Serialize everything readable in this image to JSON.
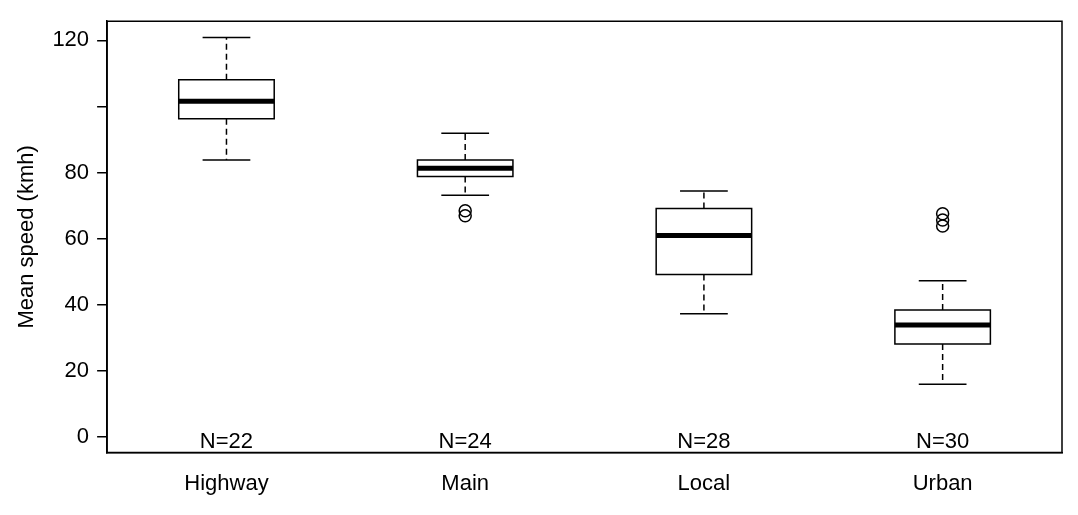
{
  "chart_data": {
    "type": "box",
    "ylabel": "Mean speed (kmh)",
    "categories": [
      "Highway",
      "Main",
      "Local",
      "Urban"
    ],
    "boxes": [
      {
        "low": 83.8,
        "q1": 96.3,
        "median": 101.6,
        "q3": 108.1,
        "high": 120.9
      },
      {
        "low": 73.1,
        "q1": 78.8,
        "median": 81.3,
        "q3": 83.8,
        "high": 91.9,
        "outliers": [
          68.4,
          66.9
        ]
      },
      {
        "low": 37.2,
        "q1": 49.1,
        "median": 60.9,
        "q3": 69.1,
        "high": 74.4
      },
      {
        "low": 15.9,
        "q1": 28.1,
        "median": 33.8,
        "q3": 38.4,
        "high": 47.2,
        "outliers": [
          67.5,
          65.6,
          63.8
        ]
      }
    ],
    "ylim": [
      -4.8,
      125.8
    ],
    "yticks": [
      0,
      20,
      40,
      60,
      80,
      {
        "value": 100,
        "label": null
      },
      120
    ],
    "grid": false,
    "legend": false,
    "annotations": [
      "N=22",
      "N=24",
      "N=28",
      "N=30"
    ]
  }
}
